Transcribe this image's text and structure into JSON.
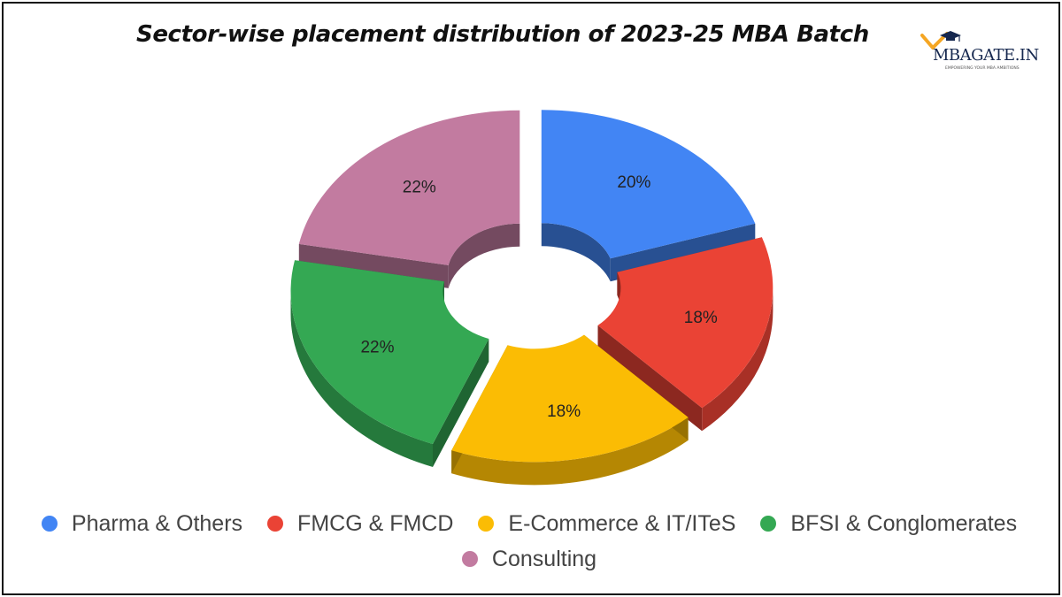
{
  "title": "Sector-wise placement distribution of 2023-25 MBA Batch",
  "logo": {
    "text": "MBAGATE.IN",
    "tagline": "EMPOWERING YOUR MBA AMBITIONS",
    "accent_color": "#f5a623",
    "text_color": "#16284f"
  },
  "chart_data": {
    "type": "pie",
    "style": "3d-exploded-donut",
    "categories": [
      "Pharma & Others",
      "FMCG & FMCD",
      "E-Commerce & IT/ITeS",
      "BFSI & Conglomerates",
      "Consulting"
    ],
    "values": [
      20,
      18,
      18,
      22,
      22
    ],
    "labels": [
      "20%",
      "18%",
      "18%",
      "22%",
      "22%"
    ],
    "colors": [
      "#4285f4",
      "#ea4335",
      "#fbbc04",
      "#34a853",
      "#c27ba0"
    ],
    "legend_position": "bottom"
  }
}
